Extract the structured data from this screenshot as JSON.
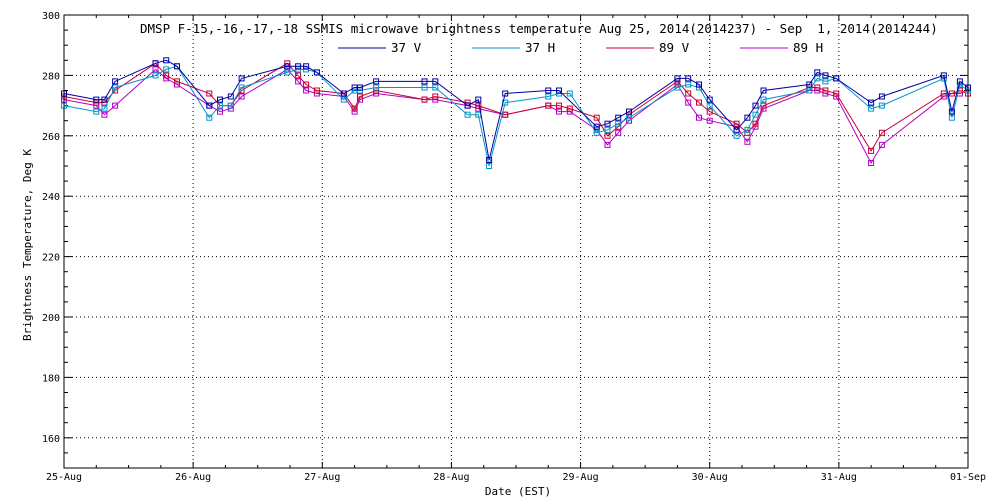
{
  "chart_data": {
    "type": "line",
    "title": "DMSP F-15,-16,-17,-18 SSMIS microwave brightness temperature Aug 25, 2014(2014237) - Sep  1, 2014(2014244)",
    "xlabel": "Date (EST)",
    "ylabel": "Brightness Temperature, Deg K",
    "xlim": [
      "25-Aug 00:00",
      "01-Sep 00:00"
    ],
    "ylim": [
      150,
      300
    ],
    "x_ticks": [
      "25-Aug",
      "26-Aug",
      "27-Aug",
      "28-Aug",
      "29-Aug",
      "30-Aug",
      "31-Aug",
      "01-Sep"
    ],
    "y_ticks": [
      160,
      180,
      200,
      220,
      240,
      260,
      280,
      300
    ],
    "grid": true,
    "legend_position": "top-center",
    "series": [
      {
        "name": "37 V",
        "color": "#0000a8",
        "points": [
          [
            "25-Aug 00:00",
            274
          ],
          [
            "25-Aug 06:00",
            272
          ],
          [
            "25-Aug 07:30",
            272
          ],
          [
            "25-Aug 09:30",
            278
          ],
          [
            "25-Aug 17:00",
            284
          ],
          [
            "25-Aug 19:00",
            285
          ],
          [
            "25-Aug 21:00",
            283
          ],
          [
            "26-Aug 03:00",
            270
          ],
          [
            "26-Aug 05:00",
            272
          ],
          [
            "26-Aug 07:00",
            273
          ],
          [
            "26-Aug 09:00",
            279
          ],
          [
            "26-Aug 17:30",
            283
          ],
          [
            "26-Aug 19:30",
            283
          ],
          [
            "26-Aug 21:00",
            283
          ],
          [
            "26-Aug 23:00",
            281
          ],
          [
            "27-Aug 04:00",
            274
          ],
          [
            "27-Aug 06:00",
            276
          ],
          [
            "27-Aug 07:00",
            276
          ],
          [
            "27-Aug 10:00",
            278
          ],
          [
            "27-Aug 19:00",
            278
          ],
          [
            "27-Aug 21:00",
            278
          ],
          [
            "28-Aug 03:00",
            270
          ],
          [
            "28-Aug 05:00",
            272
          ],
          [
            "28-Aug 07:00",
            252
          ],
          [
            "28-Aug 10:00",
            274
          ],
          [
            "28-Aug 18:00",
            275
          ],
          [
            "28-Aug 20:00",
            275
          ],
          [
            "29-Aug 03:00",
            263
          ],
          [
            "29-Aug 05:00",
            264
          ],
          [
            "29-Aug 07:00",
            266
          ],
          [
            "29-Aug 09:00",
            268
          ],
          [
            "29-Aug 18:00",
            279
          ],
          [
            "29-Aug 20:00",
            279
          ],
          [
            "29-Aug 22:00",
            277
          ],
          [
            "30-Aug 00:00",
            272
          ],
          [
            "30-Aug 05:00",
            262
          ],
          [
            "30-Aug 07:00",
            266
          ],
          [
            "30-Aug 08:30",
            270
          ],
          [
            "30-Aug 10:00",
            275
          ],
          [
            "30-Aug 18:30",
            277
          ],
          [
            "30-Aug 20:00",
            281
          ],
          [
            "30-Aug 21:30",
            280
          ],
          [
            "30-Aug 23:30",
            279
          ],
          [
            "31-Aug 06:00",
            271
          ],
          [
            "31-Aug 08:00",
            273
          ],
          [
            "31-Aug 19:30",
            280
          ],
          [
            "31-Aug 21:00",
            268
          ],
          [
            "31-Aug 22:30",
            278
          ],
          [
            "01-Sep 00:00",
            276
          ]
        ]
      },
      {
        "name": "37 H",
        "color": "#0096c8",
        "points": [
          [
            "25-Aug 00:00",
            270
          ],
          [
            "25-Aug 06:00",
            268
          ],
          [
            "25-Aug 07:30",
            269
          ],
          [
            "25-Aug 09:30",
            276
          ],
          [
            "25-Aug 17:00",
            280
          ],
          [
            "25-Aug 19:00",
            282
          ],
          [
            "25-Aug 21:00",
            283
          ],
          [
            "26-Aug 03:00",
            266
          ],
          [
            "26-Aug 05:00",
            270
          ],
          [
            "26-Aug 07:00",
            270
          ],
          [
            "26-Aug 09:00",
            276
          ],
          [
            "26-Aug 17:30",
            281
          ],
          [
            "26-Aug 19:30",
            282
          ],
          [
            "26-Aug 21:00",
            282
          ],
          [
            "26-Aug 23:00",
            281
          ],
          [
            "27-Aug 04:00",
            272
          ],
          [
            "27-Aug 06:00",
            275
          ],
          [
            "27-Aug 07:00",
            275
          ],
          [
            "27-Aug 10:00",
            276
          ],
          [
            "27-Aug 19:00",
            276
          ],
          [
            "27-Aug 21:00",
            276
          ],
          [
            "28-Aug 03:00",
            267
          ],
          [
            "28-Aug 05:00",
            267
          ],
          [
            "28-Aug 07:00",
            250
          ],
          [
            "28-Aug 10:00",
            271
          ],
          [
            "28-Aug 18:00",
            273
          ],
          [
            "28-Aug 20:00",
            274
          ],
          [
            "28-Aug 22:00",
            274
          ],
          [
            "29-Aug 03:00",
            261
          ],
          [
            "29-Aug 05:00",
            262
          ],
          [
            "29-Aug 07:00",
            264
          ],
          [
            "29-Aug 09:00",
            266
          ],
          [
            "29-Aug 18:00",
            276
          ],
          [
            "29-Aug 20:00",
            277
          ],
          [
            "29-Aug 22:00",
            276
          ],
          [
            "30-Aug 00:00",
            270
          ],
          [
            "30-Aug 05:00",
            260
          ],
          [
            "30-Aug 07:00",
            262
          ],
          [
            "30-Aug 08:30",
            267
          ],
          [
            "30-Aug 10:00",
            272
          ],
          [
            "30-Aug 18:30",
            275
          ],
          [
            "30-Aug 20:00",
            279
          ],
          [
            "30-Aug 21:30",
            278
          ],
          [
            "30-Aug 23:30",
            279
          ],
          [
            "31-Aug 06:00",
            269
          ],
          [
            "31-Aug 08:00",
            270
          ],
          [
            "31-Aug 19:30",
            279
          ],
          [
            "31-Aug 21:00",
            266
          ],
          [
            "31-Aug 22:30",
            277
          ],
          [
            "01-Sep 00:00",
            275
          ]
        ]
      },
      {
        "name": "89 V",
        "color": "#c80032",
        "points": [
          [
            "25-Aug 00:00",
            273
          ],
          [
            "25-Aug 06:00",
            271
          ],
          [
            "25-Aug 07:30",
            271
          ],
          [
            "25-Aug 09:30",
            275
          ],
          [
            "25-Aug 17:00",
            284
          ],
          [
            "25-Aug 19:00",
            280
          ],
          [
            "25-Aug 21:00",
            278
          ],
          [
            "26-Aug 03:00",
            274
          ],
          [
            "26-Aug 05:00",
            270
          ],
          [
            "26-Aug 07:00",
            270
          ],
          [
            "26-Aug 09:00",
            275
          ],
          [
            "26-Aug 17:30",
            284
          ],
          [
            "26-Aug 19:30",
            280
          ],
          [
            "26-Aug 21:00",
            277
          ],
          [
            "26-Aug 23:00",
            275
          ],
          [
            "27-Aug 04:00",
            274
          ],
          [
            "27-Aug 06:00",
            269
          ],
          [
            "27-Aug 07:00",
            273
          ],
          [
            "27-Aug 10:00",
            275
          ],
          [
            "27-Aug 19:00",
            272
          ],
          [
            "27-Aug 21:00",
            273
          ],
          [
            "28-Aug 03:00",
            271
          ],
          [
            "28-Aug 05:00",
            270
          ],
          [
            "28-Aug 10:00",
            267
          ],
          [
            "28-Aug 18:00",
            270
          ],
          [
            "28-Aug 20:00",
            270
          ],
          [
            "28-Aug 22:00",
            269
          ],
          [
            "29-Aug 03:00",
            266
          ],
          [
            "29-Aug 05:00",
            260
          ],
          [
            "29-Aug 07:00",
            263
          ],
          [
            "29-Aug 09:00",
            267
          ],
          [
            "29-Aug 18:00",
            278
          ],
          [
            "29-Aug 20:00",
            274
          ],
          [
            "29-Aug 22:00",
            271
          ],
          [
            "30-Aug 00:00",
            268
          ],
          [
            "30-Aug 05:00",
            264
          ],
          [
            "30-Aug 07:00",
            261
          ],
          [
            "30-Aug 08:30",
            264
          ],
          [
            "30-Aug 10:00",
            270
          ],
          [
            "30-Aug 18:30",
            276
          ],
          [
            "30-Aug 20:00",
            276
          ],
          [
            "30-Aug 21:30",
            275
          ],
          [
            "30-Aug 23:30",
            274
          ],
          [
            "31-Aug 06:00",
            255
          ],
          [
            "31-Aug 08:00",
            261
          ],
          [
            "31-Aug 19:30",
            274
          ],
          [
            "31-Aug 21:00",
            274
          ],
          [
            "31-Aug 22:30",
            275
          ],
          [
            "01-Sep 00:00",
            274
          ]
        ]
      },
      {
        "name": "89 H",
        "color": "#b400c8",
        "points": [
          [
            "25-Aug 00:00",
            272
          ],
          [
            "25-Aug 06:00",
            270
          ],
          [
            "25-Aug 07:30",
            267
          ],
          [
            "25-Aug 09:30",
            270
          ],
          [
            "25-Aug 17:00",
            282
          ],
          [
            "25-Aug 19:00",
            279
          ],
          [
            "25-Aug 21:00",
            277
          ],
          [
            "26-Aug 03:00",
            270
          ],
          [
            "26-Aug 05:00",
            268
          ],
          [
            "26-Aug 07:00",
            269
          ],
          [
            "26-Aug 09:00",
            273
          ],
          [
            "26-Aug 17:30",
            282
          ],
          [
            "26-Aug 19:30",
            278
          ],
          [
            "26-Aug 21:00",
            275
          ],
          [
            "26-Aug 23:00",
            274
          ],
          [
            "27-Aug 04:00",
            273
          ],
          [
            "27-Aug 06:00",
            268
          ],
          [
            "27-Aug 07:00",
            272
          ],
          [
            "27-Aug 10:00",
            274
          ],
          [
            "27-Aug 19:00",
            272
          ],
          [
            "27-Aug 21:00",
            272
          ],
          [
            "28-Aug 03:00",
            270
          ],
          [
            "28-Aug 05:00",
            269
          ],
          [
            "28-Aug 10:00",
            267
          ],
          [
            "28-Aug 18:00",
            270
          ],
          [
            "28-Aug 20:00",
            268
          ],
          [
            "28-Aug 22:00",
            268
          ],
          [
            "29-Aug 03:00",
            262
          ],
          [
            "29-Aug 05:00",
            257
          ],
          [
            "29-Aug 07:00",
            261
          ],
          [
            "29-Aug 09:00",
            265
          ],
          [
            "29-Aug 18:00",
            277
          ],
          [
            "29-Aug 20:00",
            271
          ],
          [
            "29-Aug 22:00",
            266
          ],
          [
            "30-Aug 00:00",
            265
          ],
          [
            "30-Aug 05:00",
            263
          ],
          [
            "30-Aug 07:00",
            258
          ],
          [
            "30-Aug 08:30",
            263
          ],
          [
            "30-Aug 10:00",
            269
          ],
          [
            "30-Aug 18:30",
            275
          ],
          [
            "30-Aug 20:00",
            275
          ],
          [
            "30-Aug 21:30",
            274
          ],
          [
            "30-Aug 23:30",
            273
          ],
          [
            "31-Aug 06:00",
            251
          ],
          [
            "31-Aug 08:00",
            257
          ],
          [
            "31-Aug 19:30",
            273
          ],
          [
            "31-Aug 21:00",
            274
          ],
          [
            "31-Aug 22:30",
            274
          ],
          [
            "01-Sep 00:00",
            275
          ]
        ]
      }
    ]
  }
}
